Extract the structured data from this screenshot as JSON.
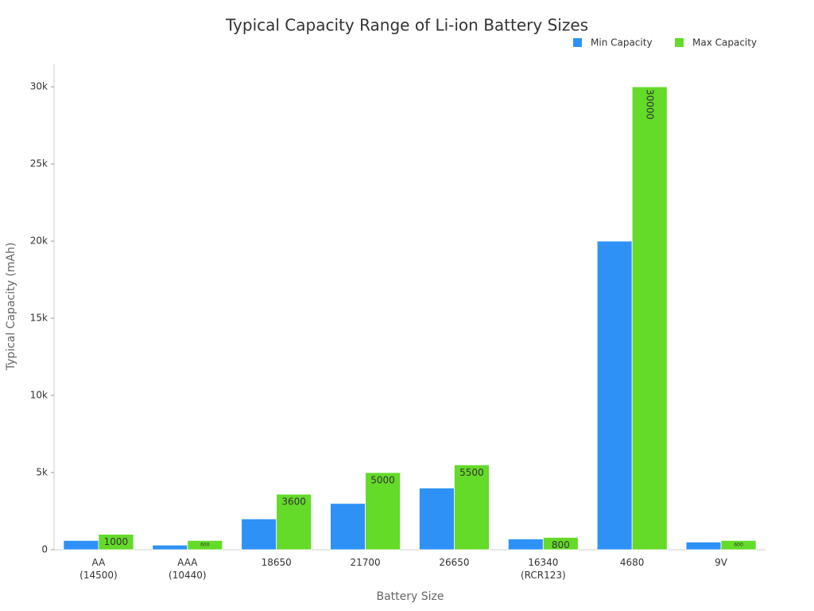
{
  "chart_data": {
    "type": "bar",
    "title": "Typical Capacity Range of Li-ion Battery Sizes",
    "x_label": "Battery Size",
    "y_label": "Typical Capacity (mAh)",
    "categories": [
      "AA\n(14500)",
      "AAA\n(10440)",
      "18650",
      "21700",
      "26650",
      "16340\n(RCR123)",
      "4680",
      "9V"
    ],
    "series": [
      {
        "name": "Min Capacity",
        "color": "#2e91f5",
        "values": [
          600,
          300,
          2000,
          3000,
          4000,
          700,
          20000,
          500
        ]
      },
      {
        "name": "Max Capacity",
        "color": "#64da29",
        "values": [
          1000,
          600,
          3600,
          5000,
          5500,
          800,
          30000,
          600
        ],
        "show_value_labels": true
      }
    ],
    "ylim": [
      0,
      31500
    ],
    "yticks": [
      0,
      {
        "value": 5000,
        "label": "5k"
      },
      {
        "value": 10000,
        "label": "10k"
      },
      {
        "value": 15000,
        "label": "15k"
      },
      {
        "value": 20000,
        "label": "20k"
      },
      {
        "value": 25000,
        "label": "25k"
      },
      {
        "value": 30000,
        "label": "30k"
      }
    ],
    "legend": "top-right",
    "grid": false
  }
}
